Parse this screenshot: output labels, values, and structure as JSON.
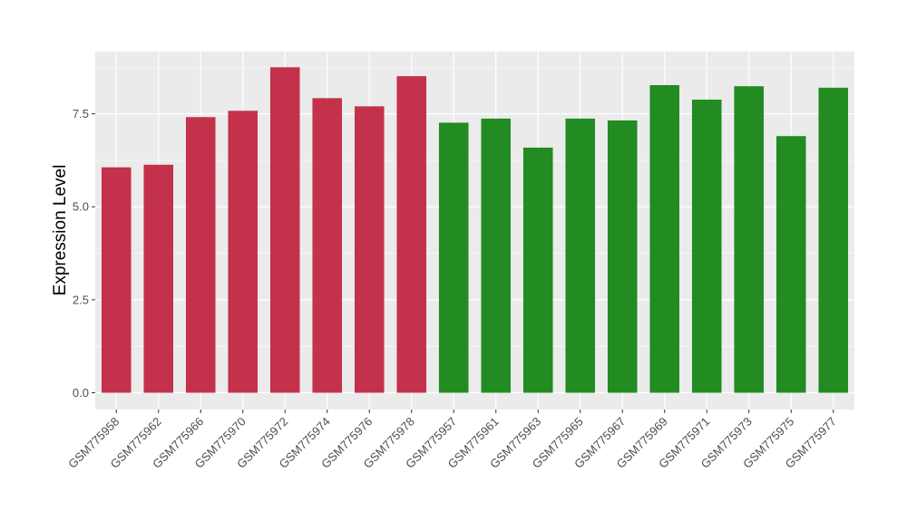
{
  "chart_data": {
    "type": "bar",
    "title": "",
    "xlabel": "",
    "ylabel": "Expression Level",
    "ylim": [
      -0.45,
      9.17
    ],
    "yticks": [
      "0.0",
      "2.5",
      "5.0",
      "7.5"
    ],
    "ytick_values": [
      0,
      2.5,
      5,
      7.5
    ],
    "grid": true,
    "legend": "none",
    "categories": [
      "GSM775958",
      "GSM775962",
      "GSM775966",
      "GSM775970",
      "GSM775972",
      "GSM775974",
      "GSM775976",
      "GSM775978",
      "GSM775957",
      "GSM775961",
      "GSM775963",
      "GSM775965",
      "GSM775967",
      "GSM775969",
      "GSM775971",
      "GSM775973",
      "GSM775975",
      "GSM775977"
    ],
    "values": [
      6.06,
      6.13,
      7.41,
      7.58,
      8.75,
      7.92,
      7.7,
      8.51,
      7.26,
      7.37,
      6.59,
      7.37,
      7.32,
      8.27,
      7.88,
      8.24,
      6.9,
      8.2
    ],
    "groups": [
      "red",
      "red",
      "red",
      "red",
      "red",
      "red",
      "red",
      "red",
      "green",
      "green",
      "green",
      "green",
      "green",
      "green",
      "green",
      "green",
      "green",
      "green"
    ],
    "colors": {
      "red": "#C3314A",
      "green": "#228B22",
      "panel": "#EBEBEB",
      "grid": "#FFFFFF"
    }
  }
}
